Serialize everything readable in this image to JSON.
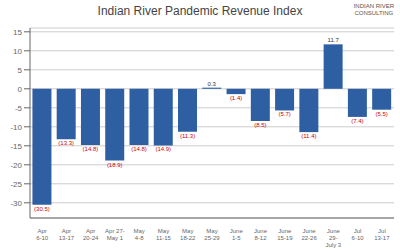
{
  "chart_data": {
    "type": "bar",
    "title": "Indian River Pandemic Revenue Index",
    "annotation": "INDIAN RIVER\nCONSULTING",
    "categories": [
      "Apr\n6-10",
      "Apr\n13-17",
      "Apr\n20-24",
      "Apr 27-\nMay 1",
      "May\n4-8",
      "May\n11-15",
      "May\n18-22",
      "May\n25-29",
      "June\n1-5",
      "June\n8-12",
      "June\n15-19",
      "June\n22-26",
      "June\n29-\nJuly 3",
      "Jul\n6-10",
      "Jul\n13-17"
    ],
    "values": [
      -30.5,
      -13.3,
      -14.8,
      -18.9,
      -14.8,
      -14.9,
      -11.3,
      0.3,
      -1.4,
      -8.5,
      -5.7,
      -11.4,
      11.7,
      -7.4,
      -5.5
    ],
    "value_labels": [
      "(30.5)",
      "(13.3)",
      "(14.8)",
      "(18.9)",
      "(14.8)",
      "(14.9)",
      "(11.3)",
      "0.3",
      "(1.4)",
      "(8.5)",
      "(5.7)",
      "(11.4)",
      "11.7",
      "(7.4)",
      "(5.5)"
    ],
    "color": "#2E5FA3",
    "ylim": [
      -34,
      16
    ],
    "yticks": [
      -30,
      -25,
      -20,
      -15,
      -10,
      -5,
      0,
      5,
      10,
      15
    ],
    "grid": true
  }
}
